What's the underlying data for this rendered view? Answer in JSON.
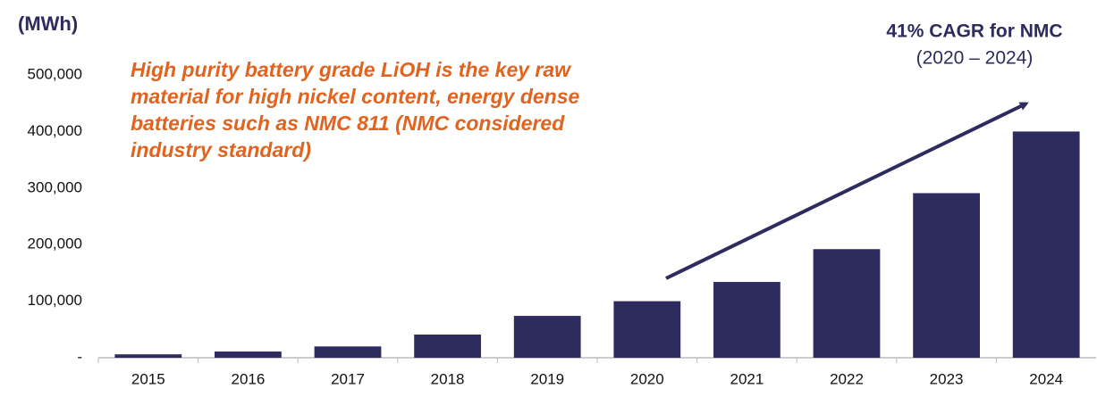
{
  "chart_data": {
    "type": "bar",
    "y_label": "(MWh)",
    "annotation": [
      "High purity battery grade LiOH is the key raw",
      "material for high nickel content, energy dense",
      "batteries such as NMC 811 (NMC considered",
      "industry standard)"
    ],
    "callout_title": "41% CAGR for NMC",
    "callout_subtitle": "(2020 – 2024)",
    "categories": [
      "2015",
      "2016",
      "2017",
      "2018",
      "2019",
      "2020",
      "2021",
      "2022",
      "2023",
      "2024"
    ],
    "values": [
      6000,
      11000,
      20000,
      41000,
      74000,
      100000,
      134000,
      192000,
      291000,
      400000
    ],
    "color": "#2e2b5f",
    "ylim": [
      0,
      500000
    ],
    "yticks": [
      {
        "value": 0,
        "label": "-"
      },
      {
        "value": 100000,
        "label": "100,000"
      },
      {
        "value": 200000,
        "label": "200,000"
      },
      {
        "value": 300000,
        "label": "300,000"
      },
      {
        "value": 400000,
        "label": "400,000"
      },
      {
        "value": 500000,
        "label": "500,000"
      }
    ],
    "grid": false
  }
}
